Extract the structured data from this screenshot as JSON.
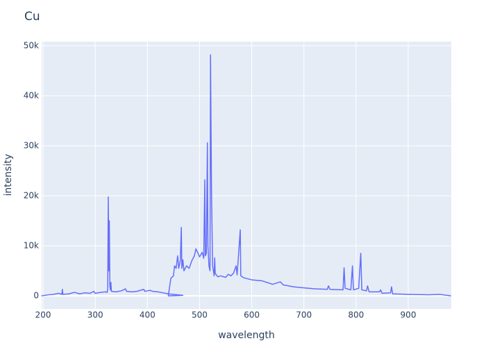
{
  "chart_data": {
    "type": "line",
    "title": "Cu",
    "x_label": "wavelength",
    "y_label": "intensity",
    "series": [
      {
        "name": "Cu",
        "color": "#636efa",
        "x": [
          197,
          210,
          220,
          230,
          236,
          237,
          238,
          250,
          260,
          270,
          280,
          290,
          297,
          300,
          310,
          320,
          323,
          324,
          325,
          326,
          327,
          328,
          329,
          330,
          331,
          340,
          350,
          358,
          360,
          370,
          380,
          393,
          395,
          400,
          405,
          410,
          420,
          430,
          440,
          450,
          460,
          468,
          440,
          445,
          450,
          452,
          455,
          458,
          460,
          463,
          465,
          466,
          468,
          470,
          475,
          480,
          485,
          490,
          493,
          497,
          500,
          505,
          508,
          510,
          511,
          513,
          515,
          516,
          518,
          520,
          521,
          522,
          523,
          525,
          528,
          529,
          530,
          535,
          540,
          550,
          555,
          560,
          565,
          570,
          572,
          578,
          579,
          585,
          600,
          620,
          640,
          655,
          660,
          680,
          700,
          720,
          745,
          747,
          750,
          775,
          777,
          779,
          790,
          793,
          795,
          805,
          809,
          811,
          820,
          822,
          825,
          845,
          847,
          850,
          866,
          868,
          870,
          900,
          940,
          960,
          982
        ],
        "values": [
          0,
          200,
          300,
          500,
          300,
          1300,
          300,
          400,
          700,
          400,
          600,
          500,
          900,
          500,
          700,
          800,
          700,
          1500,
          19800,
          5000,
          15000,
          2000,
          1200,
          2700,
          900,
          800,
          1000,
          1400,
          900,
          800,
          900,
          1300,
          900,
          1000,
          1100,
          900,
          800,
          600,
          400,
          300,
          200,
          100,
          0,
          3500,
          4000,
          6000,
          5500,
          8000,
          5500,
          7000,
          13700,
          5500,
          7200,
          5000,
          6000,
          5500,
          7000,
          8000,
          9400,
          8500,
          7800,
          8700,
          7500,
          23200,
          8000,
          8500,
          30600,
          10000,
          6000,
          5000,
          48200,
          33000,
          20000,
          6000,
          4000,
          7600,
          4500,
          3800,
          4000,
          3700,
          4300,
          4000,
          4500,
          6000,
          4200,
          13200,
          4000,
          3600,
          3200,
          3000,
          2300,
          2800,
          2200,
          1800,
          1600,
          1400,
          1300,
          2000,
          1300,
          1200,
          5600,
          1500,
          1200,
          6000,
          1200,
          1500,
          8500,
          1200,
          1000,
          2000,
          800,
          800,
          1200,
          500,
          600,
          1800,
          400,
          300,
          200,
          300,
          0
        ]
      }
    ],
    "xlim": [
      197.3,
      982.5
    ],
    "xticks": [
      200,
      300,
      400,
      500,
      600,
      700,
      800,
      900
    ],
    "ylim": [
      -2639,
      50833
    ],
    "yticks": [
      0,
      {
        "value": 10000,
        "label": "10k"
      },
      {
        "value": 20000,
        "label": "20k"
      },
      {
        "value": 30000,
        "label": "30k"
      },
      {
        "value": 40000,
        "label": "40k"
      },
      {
        "value": 50000,
        "label": "50k"
      }
    ],
    "grid": true,
    "background": "#e5ecf6"
  }
}
